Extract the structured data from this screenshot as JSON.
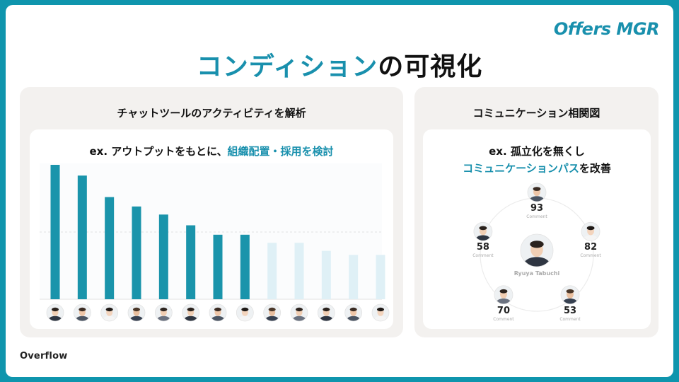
{
  "brand": {
    "logo": "Offers MGR",
    "footer": "Overflow"
  },
  "title": {
    "accent": "コンディション",
    "rest": "の可視化"
  },
  "left_panel": {
    "title": "チャットツールのアクティビティを解析",
    "caption_prefix": "ex. アウトプットをもとに、",
    "caption_accent": "組織配置・採用を検討"
  },
  "right_panel": {
    "title": "コミュニケーション相関図",
    "caption_line1": "ex. 孤立化を無くし",
    "caption_line2_accent": "コミュニケーションパス",
    "caption_line2_rest": "を改善",
    "center_name": "Ryuya Tabuchi",
    "nodes": [
      {
        "value": "93",
        "label": "Comment"
      },
      {
        "value": "82",
        "label": "Comment"
      },
      {
        "value": "53",
        "label": "Comment"
      },
      {
        "value": "70",
        "label": "Comment"
      },
      {
        "value": "58",
        "label": "Comment"
      }
    ]
  },
  "chart_data": {
    "type": "bar",
    "values": [
      100,
      92,
      76,
      69,
      63,
      55,
      48,
      48,
      42,
      42,
      36,
      33,
      33
    ],
    "highlight_count": 8,
    "ylim": [
      0,
      100
    ],
    "grid": true,
    "colors": {
      "highlight": "#1a94ab",
      "muted": "#dff0f6",
      "grid": "#d9d9d9"
    }
  },
  "colors": {
    "accent": "#1990ad",
    "background": "#0f95ad",
    "panel": "#f3f1ef"
  }
}
